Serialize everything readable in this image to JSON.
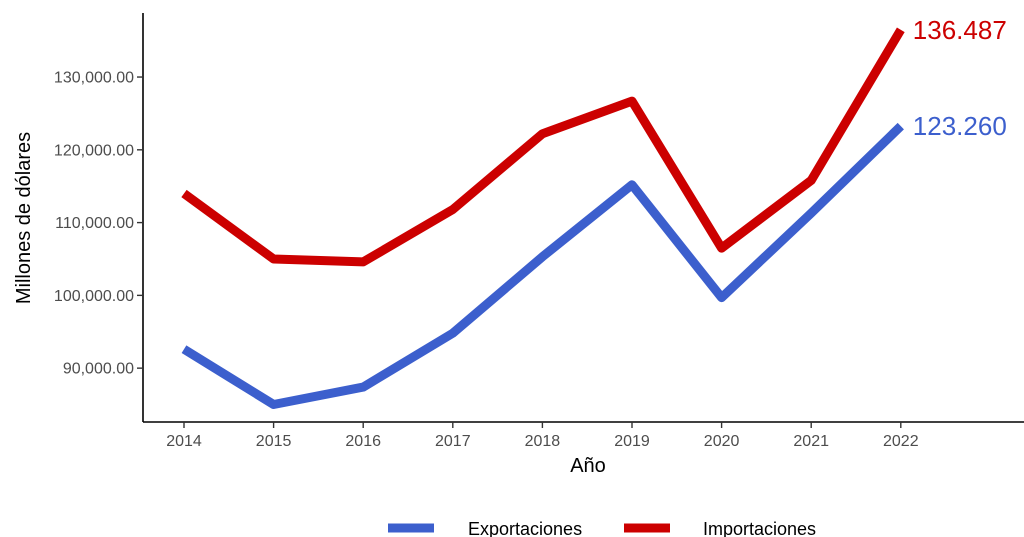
{
  "chart_data": {
    "type": "line",
    "title": "",
    "xlabel": "Año",
    "ylabel": "Millones de dólares",
    "x": [
      "2014",
      "2015",
      "2016",
      "2017",
      "2018",
      "2019",
      "2020",
      "2021",
      "2022"
    ],
    "y_ticks": [
      90000,
      100000,
      110000,
      120000,
      130000
    ],
    "y_tick_labels": [
      "90,000.00",
      "100,000.00",
      "110,000.00",
      "120,000.00",
      "130,000.00"
    ],
    "ylim": [
      82600,
      138800
    ],
    "grid": false,
    "legend_position": "bottom",
    "series": [
      {
        "name": "Exportaciones",
        "color": "#3c5fcd",
        "values": [
          92600,
          85000,
          87400,
          94800,
          105300,
          115200,
          99700,
          111300,
          123260
        ],
        "end_label": "123.260"
      },
      {
        "name": "Importaciones",
        "color": "#cc0000",
        "values": [
          114000,
          105000,
          104600,
          111800,
          122200,
          126700,
          106500,
          115800,
          136487
        ],
        "end_label": "136.487"
      }
    ]
  }
}
